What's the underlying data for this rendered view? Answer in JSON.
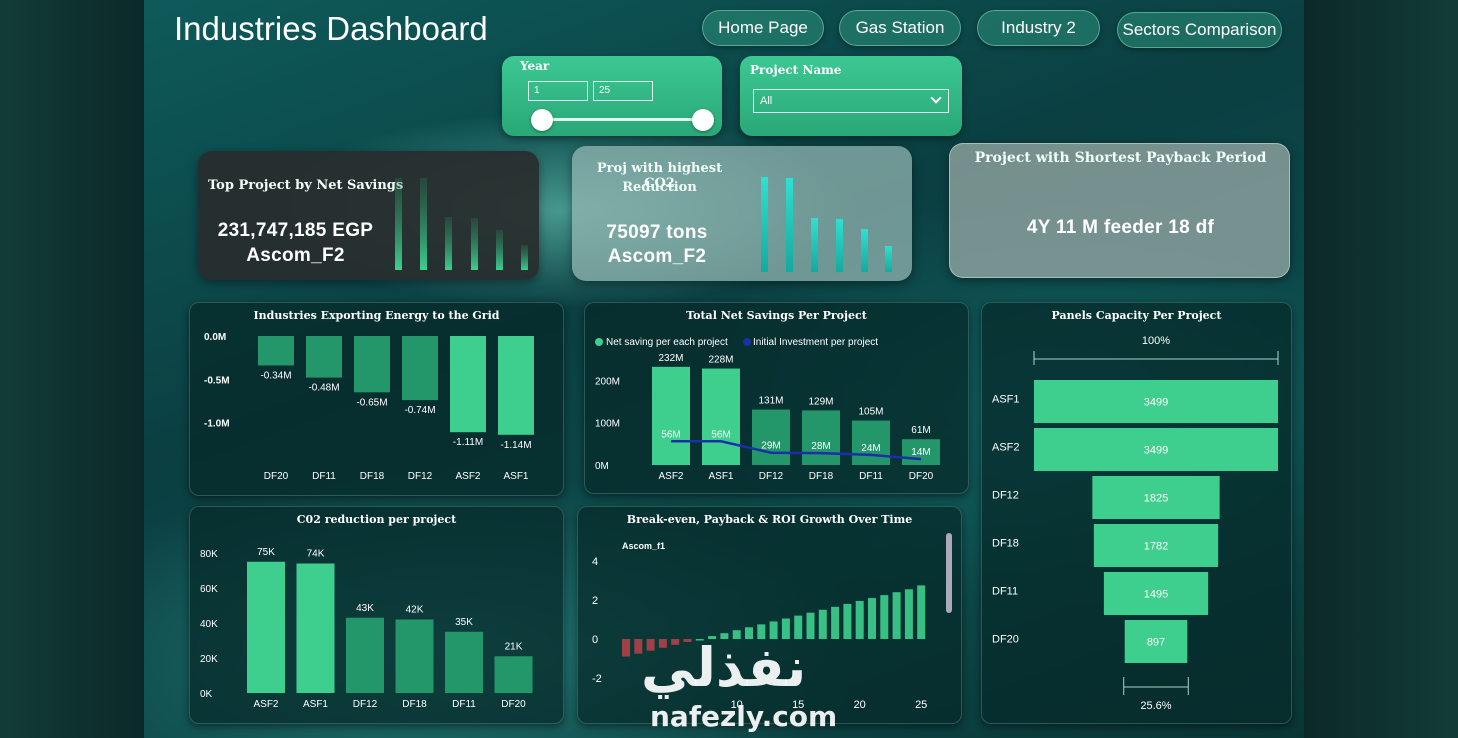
{
  "title": "Industries Dashboard",
  "nav": [
    {
      "label": "Home Page"
    },
    {
      "label": "Gas Station"
    },
    {
      "label": "Industry 2"
    },
    {
      "label": "Sectors Comparison"
    }
  ],
  "year_slicer": {
    "label": "Year",
    "min": "1",
    "max": "25"
  },
  "project_slicer": {
    "label": "Project Name",
    "selected": "All"
  },
  "kpis": {
    "net_savings": {
      "title": "Top Project by Net Savings",
      "value": "231,747,185 EGP",
      "project": "Ascom_F2"
    },
    "co2": {
      "title_line1": "Proj with highest CO2",
      "title_line2": "Reduction",
      "value": "75097 tons",
      "project": "Ascom_F2"
    },
    "payback": {
      "title": "Project with Shortest Payback Period",
      "value": "4Y 11 M  feeder 18 df"
    }
  },
  "colors": {
    "accent": "#3ecf8e",
    "bar": "#2fb57a",
    "bar_dark": "#23966a",
    "line": "#1a2fa8",
    "negative": "#b0404a"
  },
  "chart_data": [
    {
      "id": "export",
      "type": "bar",
      "title": "Industries Exporting Energy to the Grid",
      "categories": [
        "DF20",
        "DF11",
        "DF18",
        "DF12",
        "ASF2",
        "ASF1"
      ],
      "values": [
        -0.34,
        -0.48,
        -0.65,
        -0.74,
        -1.11,
        -1.14
      ],
      "labels": [
        "-0.34M",
        "-0.48M",
        "-0.65M",
        "-0.74M",
        "-1.11M",
        "-1.14M"
      ],
      "yticks": [
        "0.0M",
        "-0.5M",
        "-1.0M"
      ],
      "ylim": [
        -1.2,
        0
      ]
    },
    {
      "id": "netsavings",
      "type": "bar",
      "title": "Total Net Savings Per Project",
      "legend": [
        "Net saving per each project",
        "Initial Investment per project"
      ],
      "categories": [
        "ASF2",
        "ASF1",
        "DF12",
        "DF18",
        "DF11",
        "DF20"
      ],
      "series": [
        {
          "name": "Net saving per each project",
          "values": [
            232,
            228,
            131,
            129,
            105,
            61
          ],
          "labels": [
            "232M",
            "228M",
            "131M",
            "129M",
            "105M",
            "61M"
          ]
        },
        {
          "name": "Initial Investment per project",
          "values": [
            56,
            56,
            29,
            28,
            24,
            14
          ],
          "labels": [
            "56M",
            "56M",
            "29M",
            "28M",
            "24M",
            "14M"
          ]
        }
      ],
      "yticks": [
        "0M",
        "100M",
        "200M"
      ],
      "ylim": [
        0,
        260
      ]
    },
    {
      "id": "panels",
      "type": "bar",
      "title": "Panels Capacity Per Project",
      "top_label": "100%",
      "bottom_label": "25.6%",
      "categories": [
        "ASF1",
        "ASF2",
        "DF12",
        "DF18",
        "DF11",
        "DF20"
      ],
      "values": [
        3499,
        3499,
        1825,
        1782,
        1495,
        897
      ],
      "labels": [
        "3499",
        "3499",
        "1825",
        "1782",
        "1495",
        "897"
      ]
    },
    {
      "id": "co2",
      "type": "bar",
      "title": "C02 reduction per project",
      "categories": [
        "ASF2",
        "ASF1",
        "DF12",
        "DF18",
        "DF11",
        "DF20"
      ],
      "values": [
        75,
        74,
        43,
        42,
        35,
        21
      ],
      "labels": [
        "75K",
        "74K",
        "43K",
        "42K",
        "35K",
        "21K"
      ],
      "yticks": [
        "0K",
        "20K",
        "40K",
        "60K",
        "80K"
      ],
      "ylim": [
        0,
        80
      ]
    },
    {
      "id": "roi",
      "type": "bar",
      "title": "Break-even, Payback & ROI Growth Over Time",
      "series_label": "Ascom_f1",
      "x": [
        1,
        2,
        3,
        4,
        5,
        6,
        7,
        8,
        9,
        10,
        11,
        12,
        13,
        14,
        15,
        16,
        17,
        18,
        19,
        20,
        21,
        22,
        23,
        24,
        25
      ],
      "values": [
        -0.9,
        -0.75,
        -0.6,
        -0.45,
        -0.3,
        -0.15,
        0,
        0.15,
        0.3,
        0.45,
        0.6,
        0.75,
        0.9,
        1.05,
        1.2,
        1.35,
        1.5,
        1.65,
        1.8,
        1.95,
        2.1,
        2.25,
        2.4,
        2.55,
        2.75
      ],
      "yticks": [
        "4",
        "2",
        "0",
        "-2"
      ],
      "xticks": [
        "10",
        "15",
        "20",
        "25"
      ],
      "ylim": [
        -2.5,
        4.5
      ]
    }
  ],
  "watermark": {
    "arabic": "نفذلي",
    "latin": "nafezly.com"
  }
}
